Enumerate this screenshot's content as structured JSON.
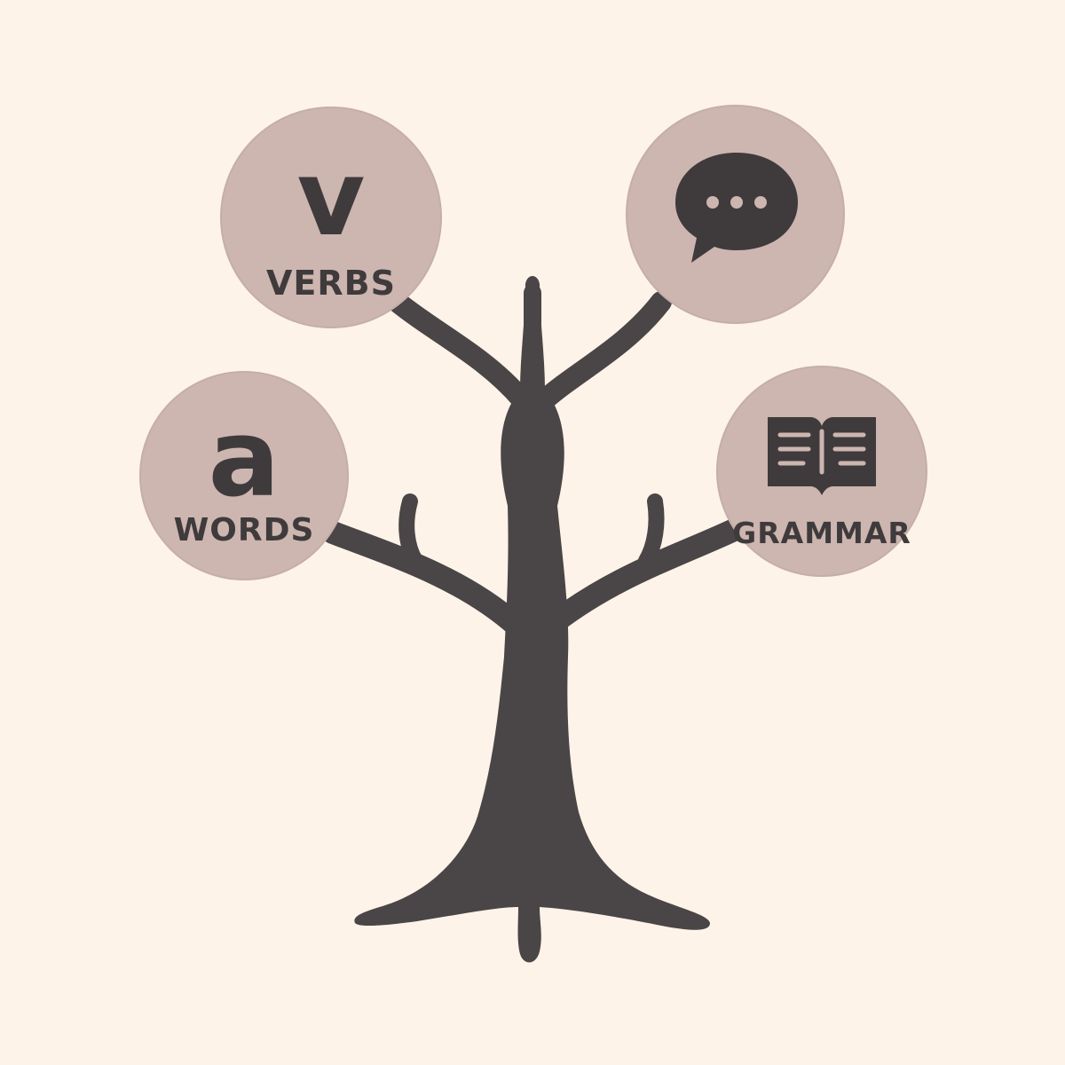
{
  "colors": {
    "background": "#fdf3e8",
    "tree": "#4a4546",
    "node_fill": "#cdb5b0",
    "text": "#3f3b3c"
  },
  "nodes": {
    "verbs": {
      "glyph": "v",
      "label": "VERBS"
    },
    "speech": {
      "icon": "speech-bubble-icon"
    },
    "words": {
      "glyph": "a",
      "label": "WORDS"
    },
    "grammar": {
      "icon": "open-book-icon",
      "label": "GRAMMAR"
    }
  }
}
